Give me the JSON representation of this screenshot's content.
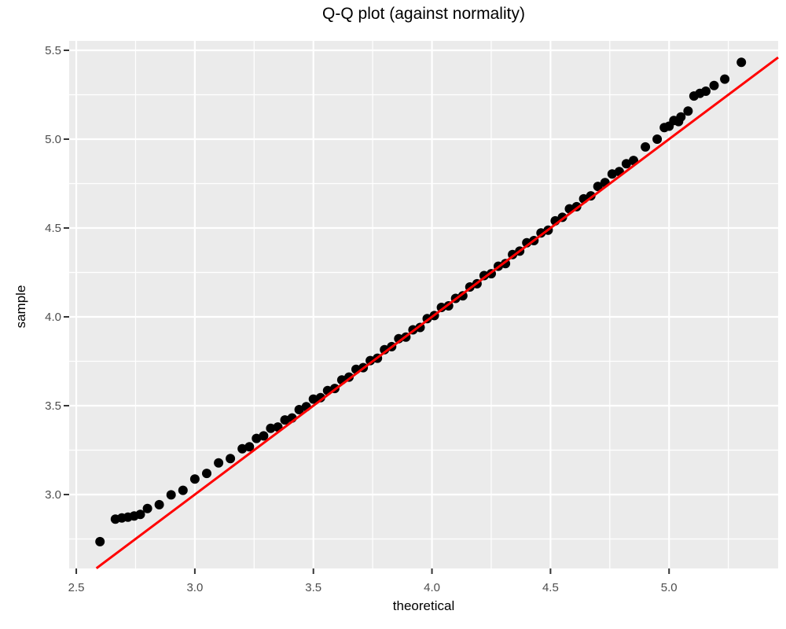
{
  "title": "Q-Q plot (against normality)",
  "colors": {
    "figure_bg": "#FFFFFF",
    "panel_bg": "#EBEBEB",
    "grid_major": "#FFFFFF",
    "grid_minor": "#FFFFFF",
    "point": "#000000",
    "reference_line": "#FF0000",
    "tick_mark": "#333333",
    "tick_label": "#4D4D4D",
    "title_text": "#000000"
  },
  "chart_data": {
    "type": "scatter",
    "title": "Q-Q plot (against normality)",
    "xlabel": "theoretical",
    "ylabel": "sample",
    "legend": "none",
    "grid": true,
    "xlim": [
      2.47,
      5.46
    ],
    "ylim": [
      2.584,
      5.553
    ],
    "x_ticks": {
      "values": [
        2.5,
        3.0,
        3.5,
        4.0,
        4.5,
        5.0
      ],
      "labels": [
        "2.5",
        "3.0",
        "3.5",
        "4.0",
        "4.5",
        "5.0"
      ]
    },
    "y_ticks": {
      "values": [
        3.0,
        3.5,
        4.0,
        4.5,
        5.0,
        5.5
      ],
      "labels": [
        "3.0",
        "3.5",
        "4.0",
        "4.5",
        "5.0",
        "5.5"
      ]
    },
    "x_minor": [
      2.75,
      3.25,
      3.75,
      4.25,
      4.75,
      5.25
    ],
    "y_minor": [
      2.75,
      3.25,
      3.75,
      4.25,
      4.75,
      5.25
    ],
    "reference_line": {
      "type": "identity",
      "x1": 2.585,
      "y1": 2.585,
      "x2": 5.46,
      "y2": 5.46
    },
    "points": [
      [
        2.6,
        2.735
      ],
      [
        2.665,
        2.862
      ],
      [
        2.692,
        2.868
      ],
      [
        2.718,
        2.873
      ],
      [
        2.744,
        2.879
      ],
      [
        2.77,
        2.888
      ],
      [
        2.8,
        2.921
      ],
      [
        2.85,
        2.943
      ],
      [
        2.9,
        2.998
      ],
      [
        2.95,
        3.024
      ],
      [
        3.0,
        3.087
      ],
      [
        3.05,
        3.119
      ],
      [
        3.1,
        3.178
      ],
      [
        3.15,
        3.202
      ],
      [
        3.2,
        3.258
      ],
      [
        3.23,
        3.269
      ],
      [
        3.26,
        3.316
      ],
      [
        3.29,
        3.33
      ],
      [
        3.32,
        3.373
      ],
      [
        3.35,
        3.38
      ],
      [
        3.38,
        3.42
      ],
      [
        3.41,
        3.431
      ],
      [
        3.44,
        3.478
      ],
      [
        3.47,
        3.494
      ],
      [
        3.5,
        3.537
      ],
      [
        3.53,
        3.545
      ],
      [
        3.56,
        3.585
      ],
      [
        3.59,
        3.597
      ],
      [
        3.62,
        3.645
      ],
      [
        3.65,
        3.661
      ],
      [
        3.68,
        3.705
      ],
      [
        3.71,
        3.714
      ],
      [
        3.74,
        3.754
      ],
      [
        3.77,
        3.767
      ],
      [
        3.8,
        3.815
      ],
      [
        3.83,
        3.832
      ],
      [
        3.86,
        3.877
      ],
      [
        3.89,
        3.886
      ],
      [
        3.92,
        3.927
      ],
      [
        3.95,
        3.94
      ],
      [
        3.98,
        3.99
      ],
      [
        4.01,
        4.007
      ],
      [
        4.04,
        4.053
      ],
      [
        4.07,
        4.062
      ],
      [
        4.1,
        4.104
      ],
      [
        4.13,
        4.118
      ],
      [
        4.16,
        4.168
      ],
      [
        4.19,
        4.186
      ],
      [
        4.22,
        4.232
      ],
      [
        4.25,
        4.243
      ],
      [
        4.28,
        4.285
      ],
      [
        4.31,
        4.3
      ],
      [
        4.34,
        4.351
      ],
      [
        4.37,
        4.37
      ],
      [
        4.4,
        4.417
      ],
      [
        4.43,
        4.429
      ],
      [
        4.46,
        4.472
      ],
      [
        4.49,
        4.488
      ],
      [
        4.52,
        4.54
      ],
      [
        4.55,
        4.56
      ],
      [
        4.58,
        4.608
      ],
      [
        4.61,
        4.62
      ],
      [
        4.64,
        4.664
      ],
      [
        4.67,
        4.681
      ],
      [
        4.7,
        4.734
      ],
      [
        4.73,
        4.755
      ],
      [
        4.76,
        4.804
      ],
      [
        4.79,
        4.817
      ],
      [
        4.82,
        4.862
      ],
      [
        4.85,
        4.88
      ],
      [
        4.9,
        4.956
      ],
      [
        4.95,
        5.0
      ],
      [
        4.98,
        5.065
      ],
      [
        5.0,
        5.073
      ],
      [
        5.02,
        5.105
      ],
      [
        5.04,
        5.099
      ],
      [
        5.05,
        5.125
      ],
      [
        5.08,
        5.158
      ],
      [
        5.105,
        5.243
      ],
      [
        5.13,
        5.258
      ],
      [
        5.155,
        5.27
      ],
      [
        5.19,
        5.302
      ],
      [
        5.235,
        5.338
      ],
      [
        5.305,
        5.432
      ]
    ]
  }
}
